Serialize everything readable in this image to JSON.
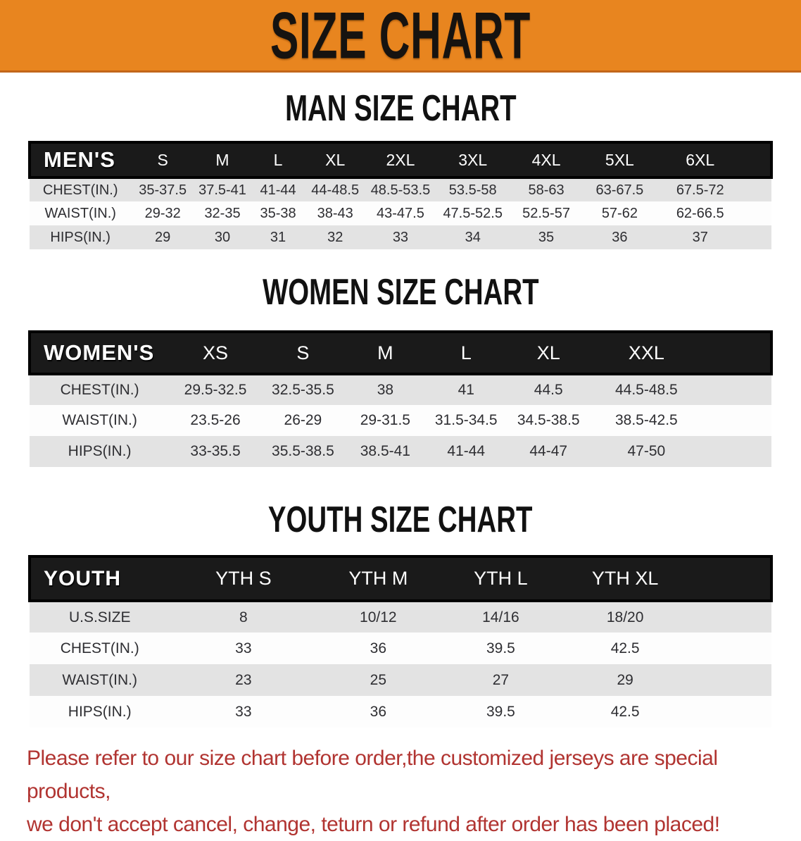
{
  "banner": {
    "title": "SIZE CHART",
    "bg_color": "#e8851f",
    "text_color": "#161310"
  },
  "sections": [
    {
      "id": "men",
      "title": "MAN SIZE CHART",
      "table": {
        "header_label": "MEN'S",
        "columns": [
          "S",
          "M",
          "L",
          "XL",
          "2XL",
          "3XL",
          "4XL",
          "5XL",
          "6XL"
        ],
        "rows": [
          {
            "label": "CHEST(IN.)",
            "values": [
              "35-37.5",
              "37.5-41",
              "41-44",
              "44-48.5",
              "48.5-53.5",
              "53.5-58",
              "58-63",
              "63-67.5",
              "67.5-72"
            ]
          },
          {
            "label": "WAIST(IN.)",
            "values": [
              "29-32",
              "32-35",
              "35-38",
              "38-43",
              "43-47.5",
              "47.5-52.5",
              "52.5-57",
              "57-62",
              "62-66.5"
            ]
          },
          {
            "label": "HIPS(IN.)",
            "values": [
              "29",
              "30",
              "31",
              "32",
              "33",
              "34",
              "35",
              "36",
              "37"
            ]
          }
        ]
      }
    },
    {
      "id": "women",
      "title": "WOMEN SIZE CHART",
      "table": {
        "header_label": "WOMEN'S",
        "columns": [
          "XS",
          "S",
          "M",
          "L",
          "XL",
          "XXL"
        ],
        "rows": [
          {
            "label": "CHEST(IN.)",
            "values": [
              "29.5-32.5",
              "32.5-35.5",
              "38",
              "41",
              "44.5",
              "44.5-48.5"
            ]
          },
          {
            "label": "WAIST(IN.)",
            "values": [
              "23.5-26",
              "26-29",
              "29-31.5",
              "31.5-34.5",
              "34.5-38.5",
              "38.5-42.5"
            ]
          },
          {
            "label": "HIPS(IN.)",
            "values": [
              "33-35.5",
              "35.5-38.5",
              "38.5-41",
              "41-44",
              "44-47",
              "47-50"
            ]
          }
        ]
      }
    },
    {
      "id": "youth",
      "title": "YOUTH SIZE CHART",
      "table": {
        "header_label": "YOUTH",
        "columns": [
          "YTH S",
          "YTH M",
          "YTH L",
          "YTH XL"
        ],
        "rows": [
          {
            "label": "U.S.SIZE",
            "values": [
              "8",
              "10/12",
              "14/16",
              "18/20"
            ]
          },
          {
            "label": "CHEST(IN.)",
            "values": [
              "33",
              "36",
              "39.5",
              "42.5"
            ]
          },
          {
            "label": "WAIST(IN.)",
            "values": [
              "23",
              "25",
              "27",
              "29"
            ]
          },
          {
            "label": "HIPS(IN.)",
            "values": [
              "33",
              "36",
              "39.5",
              "42.5"
            ]
          }
        ]
      }
    }
  ],
  "footer": {
    "lines": [
      "Please refer to our size chart before order,the customized jerseys are special products,",
      "we don't accept cancel, change, teturn or refund after order has been placed!"
    ],
    "text_color": "#b13431"
  }
}
